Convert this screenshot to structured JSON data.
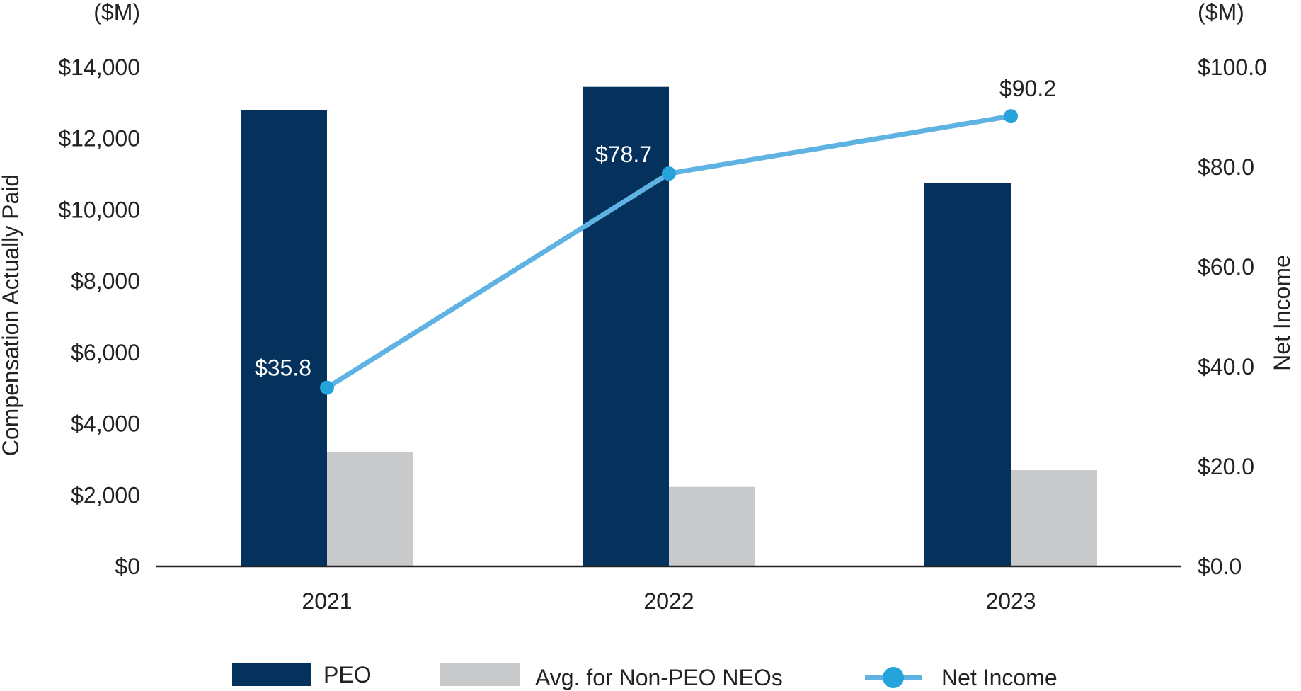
{
  "chart_data": {
    "type": "bar",
    "categories": [
      "2021",
      "2022",
      "2023"
    ],
    "series": [
      {
        "name": "PEO",
        "axis": "left",
        "type": "bar",
        "values": [
          12800,
          13450,
          10750
        ]
      },
      {
        "name": "Avg. for Non-PEO NEOs",
        "axis": "left",
        "type": "bar",
        "values": [
          3200,
          2230,
          2700
        ]
      },
      {
        "name": "Net Income",
        "axis": "right",
        "type": "line",
        "values": [
          35.8,
          78.7,
          90.2
        ],
        "data_labels": [
          "$35.8",
          "$78.7",
          "$90.2"
        ]
      }
    ],
    "left_axis": {
      "label": "Compensation Actually Paid",
      "unit": "($M)",
      "range": [
        0,
        14000
      ],
      "ticks": [
        0,
        2000,
        4000,
        6000,
        8000,
        10000,
        12000,
        14000
      ],
      "tick_labels": [
        "$0",
        "$2,000",
        "$4,000",
        "$6,000",
        "$8,000",
        "$10,000",
        "$12,000",
        "$14,000"
      ]
    },
    "right_axis": {
      "label": "Net Income",
      "unit": "($M)",
      "range": [
        0,
        100
      ],
      "ticks": [
        0,
        20,
        40,
        60,
        80,
        100
      ],
      "tick_labels": [
        "$0.0",
        "$20.0",
        "$40.0",
        "$60.0",
        "$80.0",
        "$100.0"
      ]
    },
    "grid": false,
    "legend_position": "bottom"
  },
  "colors": {
    "peo": "#04325c",
    "non_peo": "#c8c9cb",
    "net_income": "#5fb3e2",
    "net_income_marker": "#26a3db",
    "axis": "#222222",
    "label_on_dark": "#ffffff",
    "label_on_light": "#222222"
  }
}
